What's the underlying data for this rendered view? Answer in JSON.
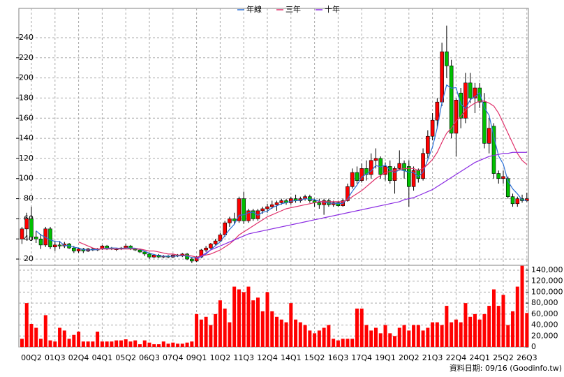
{
  "chart_data": [
    {
      "type": "candlestick",
      "legend": "top",
      "grid": true,
      "up_color": "#ff0000",
      "down_color": "#00c000",
      "note": "資料日期: 09/16 (Goodinfo.tw)",
      "ylim": [
        13.8,
        269.1
      ],
      "yticks": [
        20,
        40,
        60,
        80,
        100,
        120,
        140,
        160,
        180,
        200,
        220,
        240
      ],
      "open": [
        40,
        50,
        60,
        42,
        40,
        34,
        50,
        32,
        34,
        33,
        35,
        31,
        28,
        30,
        28,
        30,
        29,
        30,
        33,
        31,
        30,
        30,
        31,
        33,
        30,
        29,
        27,
        25,
        22,
        24,
        22,
        23,
        22,
        24,
        23,
        25,
        20,
        18,
        22,
        29,
        31,
        35,
        38,
        44,
        56,
        60,
        58,
        80,
        58,
        68,
        60,
        68,
        70,
        72,
        74,
        76,
        78,
        76,
        80,
        78,
        80,
        82,
        78,
        76,
        74,
        78,
        74,
        76,
        73,
        78,
        92,
        106,
        98,
        110,
        104,
        118,
        120,
        104,
        112,
        98,
        110,
        115,
        112,
        92,
        108,
        100,
        125,
        142,
        158,
        176,
        226,
        212,
        145,
        185,
        160,
        195,
        180,
        190,
        176,
        135,
        152,
        105,
        100,
        100,
        82,
        75,
        80,
        78
      ],
      "high": [
        52,
        66,
        72,
        48,
        45,
        52,
        52,
        38,
        38,
        37,
        36,
        33,
        31,
        31,
        31,
        31,
        31,
        34,
        34,
        32,
        31,
        32,
        35,
        34,
        31,
        30,
        28,
        26,
        25,
        25,
        24,
        24,
        25,
        25,
        26,
        26,
        22,
        23,
        30,
        33,
        36,
        40,
        46,
        58,
        62,
        66,
        82,
        87,
        70,
        70,
        70,
        72,
        75,
        78,
        78,
        80,
        80,
        82,
        84,
        82,
        84,
        84,
        80,
        80,
        80,
        80,
        78,
        78,
        80,
        95,
        110,
        112,
        115,
        118,
        125,
        130,
        122,
        116,
        118,
        112,
        128,
        118,
        118,
        112,
        110,
        130,
        148,
        165,
        180,
        235,
        252,
        218,
        180,
        190,
        205,
        205,
        195,
        195,
        185,
        160,
        155,
        108,
        108,
        102,
        85,
        82,
        84,
        86
      ],
      "low": [
        35,
        42,
        38,
        36,
        30,
        32,
        30,
        28,
        30,
        31,
        30,
        26,
        26,
        26,
        27,
        28,
        28,
        29,
        29,
        29,
        28,
        29,
        30,
        29,
        28,
        26,
        23,
        20,
        21,
        21,
        21,
        21,
        21,
        22,
        22,
        19,
        16,
        17,
        21,
        27,
        30,
        34,
        37,
        42,
        52,
        55,
        56,
        55,
        56,
        58,
        58,
        65,
        66,
        70,
        68,
        74,
        74,
        74,
        76,
        76,
        78,
        76,
        72,
        70,
        64,
        72,
        72,
        72,
        72,
        77,
        90,
        95,
        96,
        98,
        100,
        110,
        100,
        98,
        95,
        85,
        108,
        100,
        72,
        88,
        96,
        98,
        120,
        138,
        150,
        172,
        200,
        140,
        122,
        150,
        155,
        175,
        165,
        170,
        130,
        125,
        100,
        95,
        95,
        80,
        72,
        72,
        76,
        77
      ],
      "close": [
        50,
        60,
        42,
        40,
        34,
        50,
        32,
        34,
        33,
        35,
        31,
        28,
        30,
        28,
        30,
        29,
        30,
        33,
        31,
        30,
        30,
        31,
        33,
        30,
        29,
        27,
        25,
        22,
        24,
        22,
        23,
        22,
        24,
        23,
        25,
        20,
        18,
        22,
        29,
        31,
        35,
        38,
        44,
        56,
        60,
        58,
        80,
        58,
        68,
        60,
        68,
        70,
        72,
        74,
        76,
        78,
        76,
        80,
        78,
        80,
        82,
        78,
        76,
        74,
        78,
        74,
        76,
        73,
        78,
        92,
        106,
        98,
        110,
        104,
        118,
        120,
        104,
        112,
        98,
        110,
        115,
        108,
        92,
        108,
        100,
        125,
        142,
        158,
        176,
        226,
        212,
        145,
        178,
        160,
        195,
        180,
        190,
        176,
        135,
        150,
        105,
        100,
        102,
        82,
        75,
        80,
        78,
        80
      ],
      "series": [
        {
          "name": "年線",
          "color": "#2a6fd6",
          "values": [
            null,
            null,
            null,
            48,
            44,
            41.5,
            39,
            37.5,
            37.3,
            33.5,
            33.3,
            31.8,
            31,
            29.3,
            29,
            29.3,
            29.3,
            30.5,
            30.8,
            31,
            31,
            30.5,
            31,
            31,
            30.8,
            29.8,
            27.8,
            25.8,
            24.5,
            23.3,
            22.8,
            22.8,
            22.8,
            23,
            23.5,
            23,
            21.5,
            21.3,
            22.3,
            25,
            29.3,
            33.3,
            37,
            43.3,
            49.5,
            54.5,
            63.5,
            64,
            66,
            66.5,
            63.5,
            66.5,
            67.5,
            71,
            73,
            75,
            76,
            77.5,
            78,
            78.5,
            80,
            79.5,
            79,
            77.5,
            76.5,
            75.5,
            75.5,
            75.3,
            75.3,
            79.8,
            87.3,
            93.5,
            101.5,
            104.5,
            107.5,
            113,
            111.5,
            113.5,
            108.5,
            106,
            108.8,
            107.8,
            106.3,
            105.8,
            102,
            106.3,
            118.8,
            131.3,
            150.3,
            175.5,
            193,
            189.8,
            190.3,
            173.8,
            169.5,
            178.3,
            181.3,
            185.3,
            170.3,
            162.8,
            141.5,
            122.5,
            114.3,
            97.3,
            89.8,
            84.8,
            78.8,
            78.3
          ]
        },
        {
          "name": "三年",
          "color": "#e0306a",
          "values": [
            null,
            null,
            null,
            null,
            null,
            null,
            null,
            null,
            null,
            null,
            null,
            null,
            37,
            35,
            33,
            31,
            30,
            30,
            30,
            30,
            30,
            30,
            30,
            30,
            30,
            30,
            29,
            28,
            28,
            27,
            26,
            25,
            25,
            24,
            24,
            24,
            23,
            22,
            23,
            24,
            25,
            27,
            29,
            32,
            35,
            39,
            44,
            47,
            50,
            53,
            56,
            59,
            62,
            64,
            66,
            68,
            70,
            71,
            72,
            73,
            74,
            75,
            76,
            77,
            77,
            77,
            77,
            77,
            77,
            79,
            82,
            85,
            88,
            92,
            96,
            100,
            103,
            106,
            107,
            108,
            109,
            110,
            110,
            110,
            108,
            110,
            114,
            119,
            126,
            136,
            145,
            150,
            157,
            162,
            168,
            172,
            175,
            177,
            177,
            175,
            172,
            165,
            155,
            145,
            135,
            125,
            118,
            114
          ]
        },
        {
          "name": "十年",
          "color": "#8a2be2",
          "values": [
            null,
            null,
            null,
            null,
            null,
            null,
            null,
            null,
            null,
            null,
            null,
            null,
            null,
            null,
            null,
            null,
            null,
            null,
            null,
            null,
            null,
            null,
            null,
            null,
            null,
            null,
            null,
            null,
            null,
            null,
            null,
            null,
            null,
            null,
            null,
            null,
            null,
            20,
            23,
            26,
            29,
            31,
            33,
            35,
            37,
            39,
            41,
            43,
            45,
            46,
            47,
            48,
            49,
            50,
            51,
            52,
            53,
            54,
            55,
            56,
            57,
            58,
            59,
            60,
            61,
            62,
            63,
            64,
            65,
            66,
            67,
            68,
            69,
            70,
            71,
            72,
            73,
            74,
            75,
            76,
            77,
            79,
            80,
            81,
            83,
            85,
            87,
            89,
            92,
            95,
            98,
            101,
            104,
            107,
            110,
            113,
            116,
            118,
            120,
            122,
            123,
            124,
            125,
            125,
            126,
            126,
            126,
            126
          ]
        }
      ]
    },
    {
      "type": "bar",
      "color": "#ff0000",
      "grid": true,
      "categories": [
        null,
        null,
        "00Q2",
        null,
        null,
        null,
        null,
        "01Q3",
        null,
        null,
        null,
        null,
        "02Q4",
        null,
        null,
        null,
        null,
        "04Q1",
        null,
        null,
        null,
        null,
        "05Q2",
        null,
        null,
        null,
        null,
        "06Q3",
        null,
        null,
        null,
        null,
        "07Q4",
        null,
        null,
        null,
        null,
        "09Q1",
        null,
        null,
        null,
        null,
        "10Q2",
        null,
        null,
        null,
        null,
        "11Q3",
        null,
        null,
        null,
        null,
        "12Q4",
        null,
        null,
        null,
        null,
        "14Q1",
        null,
        null,
        null,
        null,
        "15Q2",
        null,
        null,
        null,
        null,
        "16Q3",
        null,
        null,
        null,
        null,
        "17Q4",
        null,
        null,
        null,
        null,
        "19Q1",
        null,
        null,
        null,
        null,
        "20Q2",
        null,
        null,
        null,
        null,
        "21Q3",
        null,
        null,
        null,
        null,
        "22Q4",
        null,
        null,
        null,
        null,
        "24Q1",
        null,
        null,
        null,
        null,
        "25Q2",
        null,
        null,
        null,
        null,
        "26Q3"
      ],
      "values": [
        15000,
        80000,
        42000,
        35000,
        15000,
        58000,
        12000,
        10000,
        35000,
        30000,
        15000,
        22000,
        28000,
        10000,
        10000,
        10000,
        28000,
        10000,
        10000,
        10000,
        12000,
        12000,
        14000,
        10000,
        12000,
        5000,
        12000,
        8000,
        5000,
        5000,
        10000,
        6000,
        8000,
        6000,
        6000,
        8000,
        10000,
        60000,
        50000,
        55000,
        40000,
        60000,
        85000,
        70000,
        45000,
        110000,
        105000,
        100000,
        110000,
        85000,
        90000,
        65000,
        100000,
        65000,
        55000,
        50000,
        45000,
        80000,
        50000,
        45000,
        40000,
        30000,
        25000,
        30000,
        35000,
        40000,
        15000,
        12000,
        15000,
        15000,
        15000,
        70000,
        70000,
        40000,
        30000,
        35000,
        25000,
        40000,
        25000,
        20000,
        35000,
        40000,
        30000,
        40000,
        40000,
        30000,
        35000,
        45000,
        45000,
        40000,
        75000,
        45000,
        50000,
        45000,
        80000,
        55000,
        60000,
        50000,
        60000,
        75000,
        105000,
        75000,
        95000,
        40000,
        65000,
        110000,
        148000,
        62000
      ],
      "ylim": [
        0,
        148900
      ],
      "yticks": [
        0,
        {
          "value": 20000,
          "label": "20,000"
        },
        {
          "value": 40000,
          "label": "40,000"
        },
        {
          "value": 60000,
          "label": "60,000"
        },
        {
          "value": 80000,
          "label": "80,000"
        },
        {
          "value": 100000,
          "label": "100,000"
        },
        {
          "value": 120000,
          "label": "120,000"
        },
        {
          "value": 140000,
          "label": "140,000"
        }
      ]
    }
  ]
}
